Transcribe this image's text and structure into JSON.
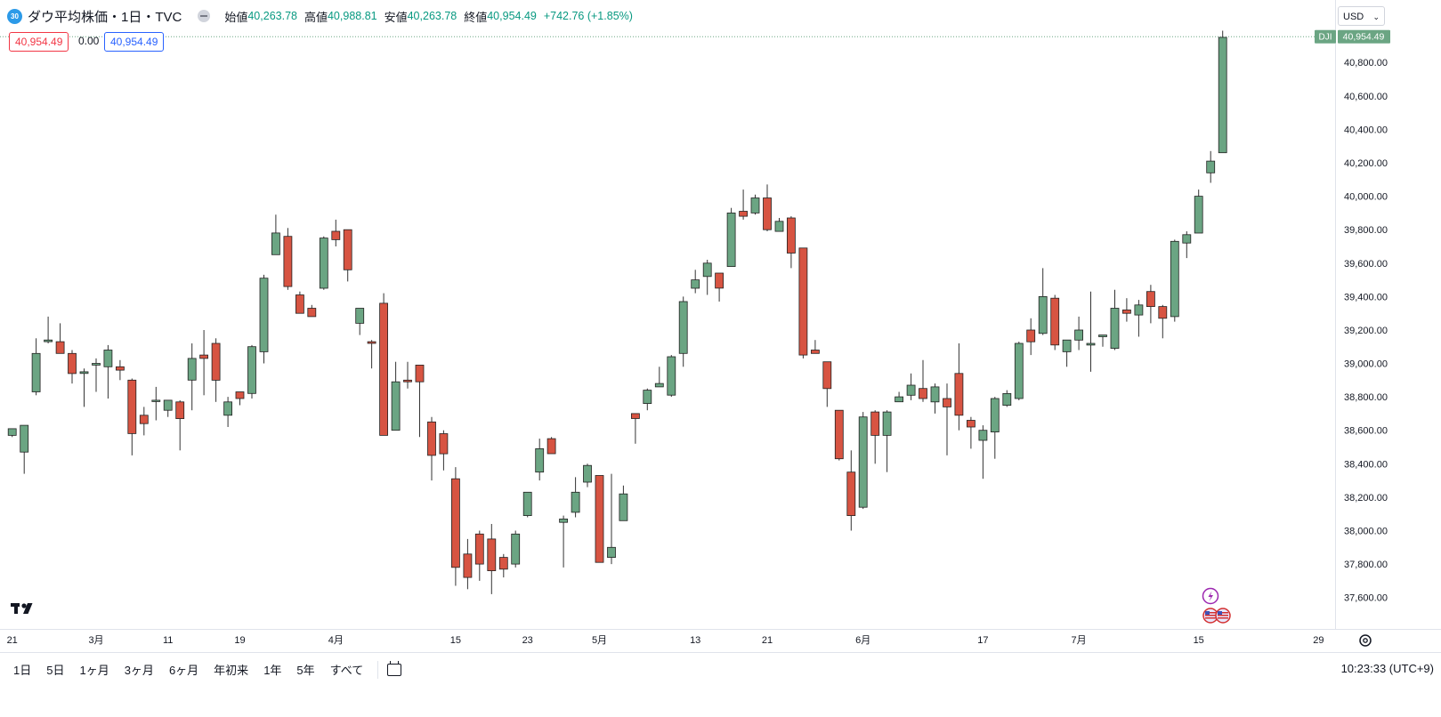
{
  "legend": {
    "badge": "30",
    "title": "ダウ平均株価・1日・TVC",
    "open_label": "始値",
    "open": "40,263.78",
    "high_label": "高値",
    "high": "40,988.81",
    "low_label": "安値",
    "low": "40,263.78",
    "close_label": "終値",
    "close": "40,954.49",
    "change": "+742.76 (+1.85%)"
  },
  "quote": {
    "bid": "40,954.49",
    "spread": "0.00",
    "ask": "40,954.49"
  },
  "currency": "USD",
  "last_price": {
    "symbol": "DJI",
    "label": "40,954.49",
    "value": 40954.49
  },
  "x_axis_labels": [
    "21",
    "3月",
    "11",
    "19",
    "4月",
    "15",
    "23",
    "5月",
    "13",
    "21",
    "6月",
    "17",
    "7月",
    "15",
    "29"
  ],
  "y_axis_labels": [
    "37,600.00",
    "37,800.00",
    "38,000.00",
    "38,200.00",
    "38,400.00",
    "38,600.00",
    "38,800.00",
    "39,000.00",
    "39,200.00",
    "39,400.00",
    "39,600.00",
    "39,800.00",
    "40,000.00",
    "40,200.00",
    "40,400.00",
    "40,600.00",
    "40,800.00"
  ],
  "toolbar": {
    "ranges": [
      "1日",
      "5日",
      "1ヶ月",
      "3ヶ月",
      "6ヶ月",
      "年初来",
      "1年",
      "5年",
      "すべて"
    ],
    "clock": "10:23:33 (UTC+9)"
  },
  "colors": {
    "up": "#6ba583",
    "down": "#d75442",
    "outline": "#222222",
    "last_price": "#6ba583"
  },
  "chart_data": {
    "type": "candlestick",
    "xlabel": "",
    "ylabel": "",
    "ylim": [
      37460,
      41020
    ],
    "y_ticks": [
      37600,
      37800,
      38000,
      38200,
      38400,
      38600,
      38800,
      39000,
      39200,
      39400,
      39600,
      39800,
      40000,
      40200,
      40400,
      40600,
      40800
    ],
    "grid": false,
    "candles": [
      [
        38570,
        38610,
        38580,
        38560
      ],
      [
        38470,
        38630,
        38340,
        38610
      ],
      [
        38830,
        39060,
        38810,
        39150
      ],
      [
        39130,
        39140,
        39280,
        39120
      ],
      [
        39130,
        39060,
        39240,
        39130
      ],
      [
        39060,
        38940,
        39080,
        38880
      ],
      [
        38940,
        38950,
        38970,
        38740
      ],
      [
        38990,
        39000,
        39030,
        38830
      ],
      [
        38980,
        39080,
        39110,
        38790
      ],
      [
        38980,
        38960,
        39020,
        38900
      ],
      [
        38900,
        38580,
        38910,
        38450
      ],
      [
        38690,
        38640,
        38740,
        38570
      ],
      [
        38780,
        38780,
        38860,
        38660
      ],
      [
        38720,
        38780,
        38780,
        38680
      ],
      [
        38770,
        38670,
        38780,
        38480
      ],
      [
        38900,
        39030,
        39120,
        38720
      ],
      [
        39050,
        39030,
        39200,
        38810
      ],
      [
        39120,
        38900,
        39150,
        38770
      ],
      [
        38690,
        38770,
        38800,
        38620
      ],
      [
        38830,
        38790,
        38830,
        38750
      ],
      [
        38820,
        39100,
        39110,
        38790
      ],
      [
        39070,
        39510,
        39530,
        39000
      ],
      [
        39650,
        39780,
        39890,
        39650
      ],
      [
        39760,
        39460,
        39810,
        39440
      ],
      [
        39410,
        39300,
        39430,
        39310
      ],
      [
        39330,
        39280,
        39350,
        39280
      ],
      [
        39450,
        39750,
        39760,
        39440
      ],
      [
        39790,
        39740,
        39860,
        39700
      ],
      [
        39800,
        39560,
        39800,
        39490
      ],
      [
        39240,
        39330,
        39240,
        39170
      ],
      [
        39130,
        39120,
        39140,
        38970
      ],
      [
        39360,
        38570,
        39420,
        38570
      ],
      [
        38600,
        38890,
        39010,
        38600
      ],
      [
        38900,
        38890,
        39010,
        38850
      ],
      [
        38990,
        38890,
        38990,
        38560
      ],
      [
        38650,
        38450,
        38680,
        38300
      ],
      [
        38580,
        38460,
        38600,
        38360
      ],
      [
        38310,
        37780,
        38380,
        37670
      ],
      [
        37860,
        37720,
        37950,
        37650
      ],
      [
        37980,
        37800,
        38000,
        37700
      ],
      [
        37950,
        37760,
        38040,
        37620
      ],
      [
        37840,
        37770,
        37860,
        37720
      ],
      [
        37800,
        37980,
        38000,
        37780
      ],
      [
        38090,
        38230,
        38230,
        38080
      ],
      [
        38350,
        38490,
        38550,
        38300
      ],
      [
        38550,
        38460,
        38560,
        38460
      ],
      [
        38050,
        38070,
        38090,
        37780
      ],
      [
        38110,
        38230,
        38320,
        38080
      ],
      [
        38290,
        38390,
        38400,
        38260
      ],
      [
        38330,
        37810,
        38330,
        37810
      ],
      [
        37840,
        37900,
        38340,
        37800
      ],
      [
        38060,
        38220,
        38270,
        38060
      ],
      [
        38700,
        38670,
        38700,
        38520
      ],
      [
        38760,
        38840,
        38850,
        38720
      ],
      [
        38860,
        38880,
        38980,
        38870
      ],
      [
        38810,
        39040,
        39050,
        38800
      ],
      [
        39060,
        39370,
        39400,
        38980
      ],
      [
        39450,
        39500,
        39560,
        39420
      ],
      [
        39520,
        39600,
        39620,
        39410
      ],
      [
        39540,
        39450,
        39520,
        39370
      ],
      [
        39580,
        39900,
        39930,
        39580
      ],
      [
        39910,
        39880,
        40040,
        39860
      ],
      [
        39900,
        39990,
        40010,
        39890
      ],
      [
        39990,
        39800,
        40070,
        39790
      ],
      [
        39790,
        39850,
        39870,
        39810
      ],
      [
        39870,
        39660,
        39880,
        39570
      ],
      [
        39690,
        39050,
        39690,
        39030
      ],
      [
        39080,
        39060,
        39140,
        39060
      ],
      [
        39010,
        38850,
        39010,
        38740
      ],
      [
        38720,
        38430,
        38720,
        38420
      ],
      [
        38350,
        38090,
        38480,
        38000
      ],
      [
        38140,
        38680,
        38710,
        38130
      ],
      [
        38710,
        38570,
        38720,
        38400
      ],
      [
        38570,
        38710,
        38720,
        38350
      ],
      [
        38770,
        38800,
        38830,
        38790
      ],
      [
        38810,
        38870,
        38940,
        38780
      ],
      [
        38850,
        38790,
        39020,
        38770
      ],
      [
        38770,
        38860,
        38880,
        38700
      ],
      [
        38790,
        38740,
        38880,
        38450
      ],
      [
        38940,
        38690,
        39120,
        38600
      ],
      [
        38660,
        38620,
        38680,
        38490
      ],
      [
        38540,
        38600,
        38630,
        38310
      ],
      [
        38590,
        38790,
        38800,
        38430
      ],
      [
        38750,
        38820,
        38840,
        38740
      ],
      [
        38790,
        39120,
        39130,
        38780
      ],
      [
        39200,
        39130,
        39270,
        39050
      ],
      [
        39180,
        39400,
        39570,
        39170
      ],
      [
        39390,
        39110,
        39410,
        39080
      ],
      [
        39070,
        39140,
        39140,
        38980
      ],
      [
        39140,
        39200,
        39280,
        39080
      ],
      [
        39110,
        39120,
        39430,
        38950
      ],
      [
        39160,
        39170,
        39170,
        39100
      ],
      [
        39090,
        39330,
        39440,
        39080
      ],
      [
        39320,
        39300,
        39390,
        39250
      ],
      [
        39290,
        39350,
        39380,
        39160
      ],
      [
        39430,
        39340,
        39470,
        39240
      ],
      [
        39340,
        39270,
        39350,
        39150
      ],
      [
        39280,
        39730,
        39740,
        39250
      ],
      [
        39720,
        39770,
        39790,
        39630
      ],
      [
        39780,
        40000,
        40040,
        39780
      ],
      [
        40140,
        40210,
        40270,
        40080
      ],
      [
        40260,
        40950,
        40990,
        40260
      ]
    ]
  }
}
